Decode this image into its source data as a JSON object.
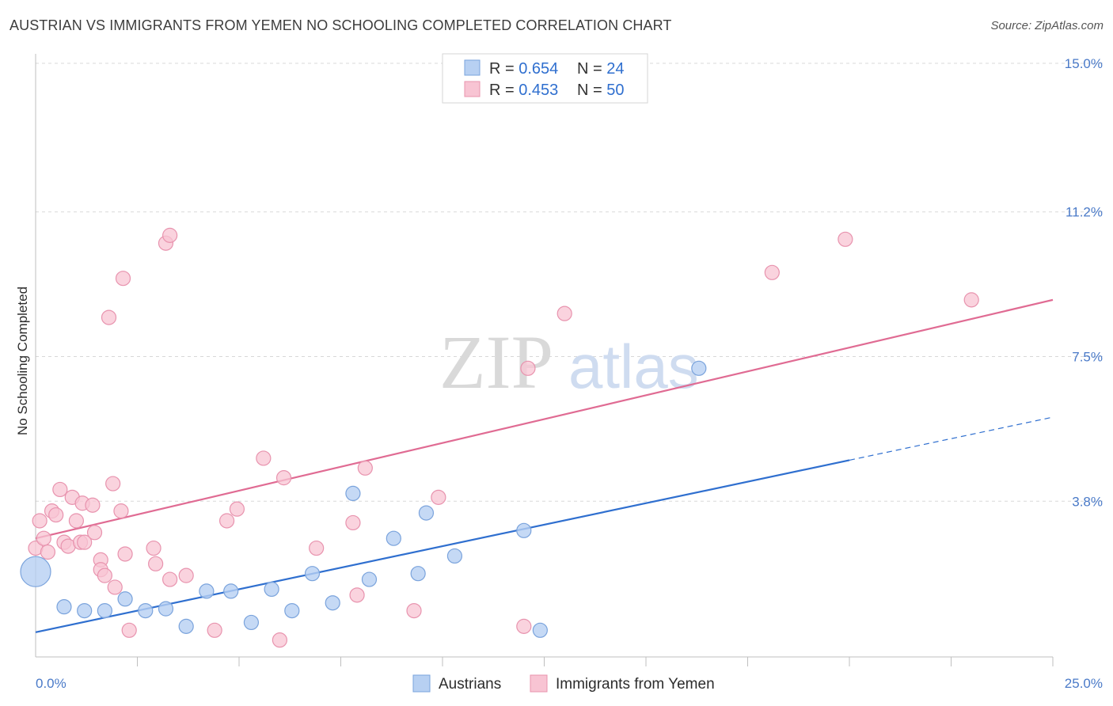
{
  "header": {
    "title": "AUSTRIAN VS IMMIGRANTS FROM YEMEN NO SCHOOLING COMPLETED CORRELATION CHART",
    "source": "Source: ZipAtlas.com"
  },
  "watermark": {
    "zip": "ZIP",
    "atlas": "atlas"
  },
  "colors": {
    "blue_fill": "#b7d0f2",
    "blue_stroke": "#7aa3dc",
    "blue_line": "#2f6fcf",
    "pink_fill": "#f8c4d3",
    "pink_stroke": "#e893ae",
    "pink_line": "#e06b93",
    "tick_text": "#4a7ac8",
    "grid": "#d8d8d8"
  },
  "legend": {
    "rows": [
      {
        "r_label": "R = ",
        "r_value": "0.654",
        "n_label": "N = ",
        "n_value": "24",
        "color": "#b7d0f2"
      },
      {
        "r_label": "R = ",
        "r_value": "0.453",
        "n_label": "N = ",
        "n_value": "50",
        "color": "#f8c4d3"
      }
    ]
  },
  "chart_data": {
    "type": "scatter",
    "title": "AUSTRIAN VS IMMIGRANTS FROM YEMEN NO SCHOOLING COMPLETED CORRELATION CHART",
    "xlabel": "",
    "ylabel": "No Schooling Completed",
    "xlim": [
      0,
      25
    ],
    "ylim": [
      0,
      15
    ],
    "x_tick_labels": [
      "0.0%",
      "25.0%"
    ],
    "y_ticks": [
      3.8,
      7.5,
      11.2,
      15.0
    ],
    "y_tick_labels": [
      "3.8%",
      "7.5%",
      "11.2%",
      "15.0%"
    ],
    "series": [
      {
        "name": "Austrians",
        "r": 0.654,
        "n": 24,
        "points": [
          {
            "x": 0.0,
            "y": 2.0,
            "big": true
          },
          {
            "x": 0.7,
            "y": 1.1
          },
          {
            "x": 1.2,
            "y": 1.0
          },
          {
            "x": 1.7,
            "y": 1.0
          },
          {
            "x": 2.2,
            "y": 1.3
          },
          {
            "x": 2.7,
            "y": 1.0
          },
          {
            "x": 3.2,
            "y": 1.05
          },
          {
            "x": 3.7,
            "y": 0.6
          },
          {
            "x": 4.2,
            "y": 1.5
          },
          {
            "x": 4.8,
            "y": 1.5
          },
          {
            "x": 5.3,
            "y": 0.7
          },
          {
            "x": 5.8,
            "y": 1.55
          },
          {
            "x": 6.3,
            "y": 1.0
          },
          {
            "x": 6.8,
            "y": 1.95
          },
          {
            "x": 7.3,
            "y": 1.2
          },
          {
            "x": 7.8,
            "y": 4.0
          },
          {
            "x": 8.2,
            "y": 1.8
          },
          {
            "x": 8.8,
            "y": 2.85
          },
          {
            "x": 9.4,
            "y": 1.95
          },
          {
            "x": 9.6,
            "y": 3.5
          },
          {
            "x": 10.3,
            "y": 2.4
          },
          {
            "x": 12.0,
            "y": 3.05
          },
          {
            "x": 12.4,
            "y": 0.5
          },
          {
            "x": 16.3,
            "y": 7.2
          }
        ],
        "trend": {
          "x1": 0.0,
          "y1": 0.45,
          "x2": 20.0,
          "y2": 4.85
        },
        "trend_extension": {
          "x1": 20.0,
          "y1": 4.85,
          "x2": 25.0,
          "y2": 5.95
        }
      },
      {
        "name": "Immigrants from Yemen",
        "r": 0.453,
        "n": 50,
        "points": [
          {
            "x": 0.0,
            "y": 2.6
          },
          {
            "x": 0.1,
            "y": 3.3
          },
          {
            "x": 0.2,
            "y": 2.85
          },
          {
            "x": 0.3,
            "y": 2.5
          },
          {
            "x": 0.4,
            "y": 3.55
          },
          {
            "x": 0.5,
            "y": 3.45
          },
          {
            "x": 0.6,
            "y": 4.1
          },
          {
            "x": 0.7,
            "y": 2.75
          },
          {
            "x": 0.8,
            "y": 2.65
          },
          {
            "x": 0.9,
            "y": 3.9
          },
          {
            "x": 1.0,
            "y": 3.3
          },
          {
            "x": 1.1,
            "y": 2.75
          },
          {
            "x": 1.2,
            "y": 2.75
          },
          {
            "x": 1.15,
            "y": 3.75
          },
          {
            "x": 1.4,
            "y": 3.7
          },
          {
            "x": 1.45,
            "y": 3.0
          },
          {
            "x": 1.6,
            "y": 2.3
          },
          {
            "x": 1.6,
            "y": 2.05
          },
          {
            "x": 1.7,
            "y": 1.9
          },
          {
            "x": 1.8,
            "y": 8.5
          },
          {
            "x": 1.9,
            "y": 4.25
          },
          {
            "x": 1.95,
            "y": 1.6
          },
          {
            "x": 2.1,
            "y": 3.55
          },
          {
            "x": 2.15,
            "y": 9.5
          },
          {
            "x": 2.2,
            "y": 2.45
          },
          {
            "x": 2.3,
            "y": 0.5
          },
          {
            "x": 2.9,
            "y": 2.6
          },
          {
            "x": 2.95,
            "y": 2.2
          },
          {
            "x": 3.2,
            "y": 10.4
          },
          {
            "x": 3.3,
            "y": 10.6
          },
          {
            "x": 3.3,
            "y": 1.8
          },
          {
            "x": 3.7,
            "y": 1.9
          },
          {
            "x": 4.4,
            "y": 0.5
          },
          {
            "x": 4.7,
            "y": 3.3
          },
          {
            "x": 4.95,
            "y": 3.6
          },
          {
            "x": 5.6,
            "y": 4.9
          },
          {
            "x": 6.0,
            "y": 0.25
          },
          {
            "x": 6.1,
            "y": 4.4
          },
          {
            "x": 6.9,
            "y": 2.6
          },
          {
            "x": 7.8,
            "y": 3.25
          },
          {
            "x": 7.9,
            "y": 1.4
          },
          {
            "x": 8.1,
            "y": 4.65
          },
          {
            "x": 9.3,
            "y": 1.0
          },
          {
            "x": 9.9,
            "y": 3.9
          },
          {
            "x": 12.0,
            "y": 0.6
          },
          {
            "x": 12.1,
            "y": 7.2
          },
          {
            "x": 13.0,
            "y": 8.6
          },
          {
            "x": 18.1,
            "y": 9.65
          },
          {
            "x": 19.9,
            "y": 10.5
          },
          {
            "x": 23.0,
            "y": 8.95
          }
        ],
        "trend": {
          "x1": 0.0,
          "y1": 2.85,
          "x2": 25.0,
          "y2": 8.95
        }
      }
    ]
  }
}
